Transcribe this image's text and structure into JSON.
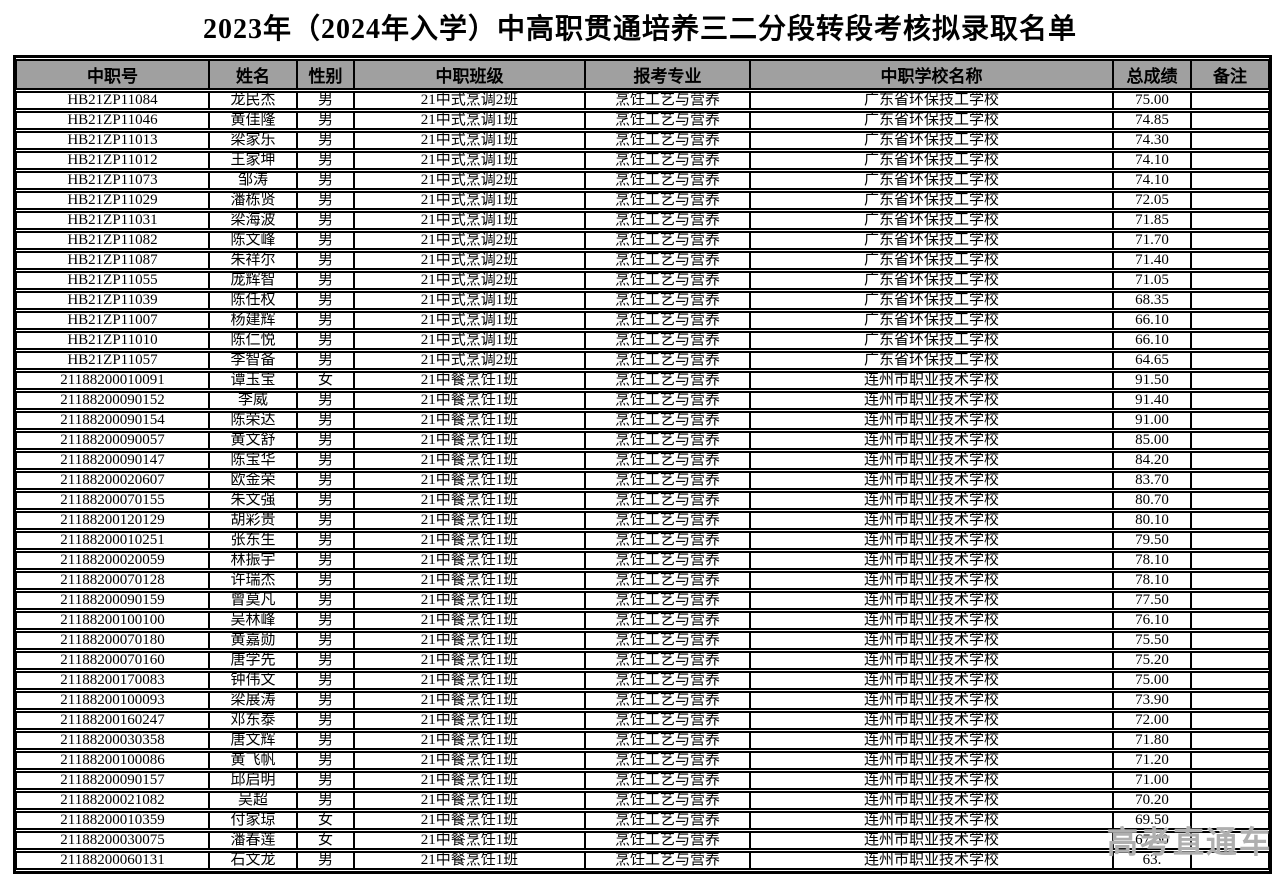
{
  "page": {
    "title": "2023年（2024年入学）中高职贯通培养三二分段转段考核拟录取名单"
  },
  "watermark": {
    "text": "高考直通车"
  },
  "table": {
    "headers": [
      "中职号",
      "姓名",
      "性别",
      "中职班级",
      "报考专业",
      "中职学校名称",
      "总成绩",
      "备注"
    ],
    "rows": [
      {
        "id": "HB21ZP11084",
        "name": "龙民杰",
        "gender": "男",
        "class": "21中式烹调2班",
        "major": "烹饪工艺与营养",
        "school": "广东省环保技工学校",
        "score": "75.00",
        "note": ""
      },
      {
        "id": "HB21ZP11046",
        "name": "黄佳隆",
        "gender": "男",
        "class": "21中式烹调1班",
        "major": "烹饪工艺与营养",
        "school": "广东省环保技工学校",
        "score": "74.85",
        "note": ""
      },
      {
        "id": "HB21ZP11013",
        "name": "梁家乐",
        "gender": "男",
        "class": "21中式烹调1班",
        "major": "烹饪工艺与营养",
        "school": "广东省环保技工学校",
        "score": "74.30",
        "note": ""
      },
      {
        "id": "HB21ZP11012",
        "name": "王家坤",
        "gender": "男",
        "class": "21中式烹调1班",
        "major": "烹饪工艺与营养",
        "school": "广东省环保技工学校",
        "score": "74.10",
        "note": ""
      },
      {
        "id": "HB21ZP11073",
        "name": "邹涛",
        "gender": "男",
        "class": "21中式烹调2班",
        "major": "烹饪工艺与营养",
        "school": "广东省环保技工学校",
        "score": "74.10",
        "note": ""
      },
      {
        "id": "HB21ZP11029",
        "name": "潘栋贤",
        "gender": "男",
        "class": "21中式烹调1班",
        "major": "烹饪工艺与营养",
        "school": "广东省环保技工学校",
        "score": "72.05",
        "note": ""
      },
      {
        "id": "HB21ZP11031",
        "name": "梁海波",
        "gender": "男",
        "class": "21中式烹调1班",
        "major": "烹饪工艺与营养",
        "school": "广东省环保技工学校",
        "score": "71.85",
        "note": ""
      },
      {
        "id": "HB21ZP11082",
        "name": "陈文峰",
        "gender": "男",
        "class": "21中式烹调2班",
        "major": "烹饪工艺与营养",
        "school": "广东省环保技工学校",
        "score": "71.70",
        "note": ""
      },
      {
        "id": "HB21ZP11087",
        "name": "朱祥尔",
        "gender": "男",
        "class": "21中式烹调2班",
        "major": "烹饪工艺与营养",
        "school": "广东省环保技工学校",
        "score": "71.40",
        "note": ""
      },
      {
        "id": "HB21ZP11055",
        "name": "庞辉智",
        "gender": "男",
        "class": "21中式烹调2班",
        "major": "烹饪工艺与营养",
        "school": "广东省环保技工学校",
        "score": "71.05",
        "note": ""
      },
      {
        "id": "HB21ZP11039",
        "name": "陈任权",
        "gender": "男",
        "class": "21中式烹调1班",
        "major": "烹饪工艺与营养",
        "school": "广东省环保技工学校",
        "score": "68.35",
        "note": ""
      },
      {
        "id": "HB21ZP11007",
        "name": "杨建辉",
        "gender": "男",
        "class": "21中式烹调1班",
        "major": "烹饪工艺与营养",
        "school": "广东省环保技工学校",
        "score": "66.10",
        "note": ""
      },
      {
        "id": "HB21ZP11010",
        "name": "陈仁悦",
        "gender": "男",
        "class": "21中式烹调1班",
        "major": "烹饪工艺与营养",
        "school": "广东省环保技工学校",
        "score": "66.10",
        "note": ""
      },
      {
        "id": "HB21ZP11057",
        "name": "李智备",
        "gender": "男",
        "class": "21中式烹调2班",
        "major": "烹饪工艺与营养",
        "school": "广东省环保技工学校",
        "score": "64.65",
        "note": ""
      },
      {
        "id": "21188200010091",
        "name": "谭玉宝",
        "gender": "女",
        "class": "21中餐烹饪1班",
        "major": "烹饪工艺与营养",
        "school": "连州市职业技术学校",
        "score": "91.50",
        "note": ""
      },
      {
        "id": "21188200090152",
        "name": "李威",
        "gender": "男",
        "class": "21中餐烹饪1班",
        "major": "烹饪工艺与营养",
        "school": "连州市职业技术学校",
        "score": "91.40",
        "note": ""
      },
      {
        "id": "21188200090154",
        "name": "陈荣达",
        "gender": "男",
        "class": "21中餐烹饪1班",
        "major": "烹饪工艺与营养",
        "school": "连州市职业技术学校",
        "score": "91.00",
        "note": ""
      },
      {
        "id": "21188200090057",
        "name": "黄文舒",
        "gender": "男",
        "class": "21中餐烹饪1班",
        "major": "烹饪工艺与营养",
        "school": "连州市职业技术学校",
        "score": "85.00",
        "note": ""
      },
      {
        "id": "21188200090147",
        "name": "陈宝华",
        "gender": "男",
        "class": "21中餐烹饪1班",
        "major": "烹饪工艺与营养",
        "school": "连州市职业技术学校",
        "score": "84.20",
        "note": ""
      },
      {
        "id": "21188200020607",
        "name": "欧金荣",
        "gender": "男",
        "class": "21中餐烹饪1班",
        "major": "烹饪工艺与营养",
        "school": "连州市职业技术学校",
        "score": "83.70",
        "note": ""
      },
      {
        "id": "21188200070155",
        "name": "朱文强",
        "gender": "男",
        "class": "21中餐烹饪1班",
        "major": "烹饪工艺与营养",
        "school": "连州市职业技术学校",
        "score": "80.70",
        "note": ""
      },
      {
        "id": "21188200120129",
        "name": "胡彩贵",
        "gender": "男",
        "class": "21中餐烹饪1班",
        "major": "烹饪工艺与营养",
        "school": "连州市职业技术学校",
        "score": "80.10",
        "note": ""
      },
      {
        "id": "21188200010251",
        "name": "张东生",
        "gender": "男",
        "class": "21中餐烹饪1班",
        "major": "烹饪工艺与营养",
        "school": "连州市职业技术学校",
        "score": "79.50",
        "note": ""
      },
      {
        "id": "21188200020059",
        "name": "林振宇",
        "gender": "男",
        "class": "21中餐烹饪1班",
        "major": "烹饪工艺与营养",
        "school": "连州市职业技术学校",
        "score": "78.10",
        "note": ""
      },
      {
        "id": "21188200070128",
        "name": "许瑞杰",
        "gender": "男",
        "class": "21中餐烹饪1班",
        "major": "烹饪工艺与营养",
        "school": "连州市职业技术学校",
        "score": "78.10",
        "note": ""
      },
      {
        "id": "21188200090159",
        "name": "曾莫凡",
        "gender": "男",
        "class": "21中餐烹饪1班",
        "major": "烹饪工艺与营养",
        "school": "连州市职业技术学校",
        "score": "77.50",
        "note": ""
      },
      {
        "id": "21188200100100",
        "name": "吴林峰",
        "gender": "男",
        "class": "21中餐烹饪1班",
        "major": "烹饪工艺与营养",
        "school": "连州市职业技术学校",
        "score": "76.10",
        "note": ""
      },
      {
        "id": "21188200070180",
        "name": "黄嘉勋",
        "gender": "男",
        "class": "21中餐烹饪1班",
        "major": "烹饪工艺与营养",
        "school": "连州市职业技术学校",
        "score": "75.50",
        "note": ""
      },
      {
        "id": "21188200070160",
        "name": "唐学先",
        "gender": "男",
        "class": "21中餐烹饪1班",
        "major": "烹饪工艺与营养",
        "school": "连州市职业技术学校",
        "score": "75.20",
        "note": ""
      },
      {
        "id": "21188200170083",
        "name": "钟伟文",
        "gender": "男",
        "class": "21中餐烹饪1班",
        "major": "烹饪工艺与营养",
        "school": "连州市职业技术学校",
        "score": "75.00",
        "note": ""
      },
      {
        "id": "21188200100093",
        "name": "梁展涛",
        "gender": "男",
        "class": "21中餐烹饪1班",
        "major": "烹饪工艺与营养",
        "school": "连州市职业技术学校",
        "score": "73.90",
        "note": ""
      },
      {
        "id": "21188200160247",
        "name": "邓东泰",
        "gender": "男",
        "class": "21中餐烹饪1班",
        "major": "烹饪工艺与营养",
        "school": "连州市职业技术学校",
        "score": "72.00",
        "note": ""
      },
      {
        "id": "21188200030358",
        "name": "唐文辉",
        "gender": "男",
        "class": "21中餐烹饪1班",
        "major": "烹饪工艺与营养",
        "school": "连州市职业技术学校",
        "score": "71.80",
        "note": ""
      },
      {
        "id": "21188200100086",
        "name": "黄飞帆",
        "gender": "男",
        "class": "21中餐烹饪1班",
        "major": "烹饪工艺与营养",
        "school": "连州市职业技术学校",
        "score": "71.20",
        "note": ""
      },
      {
        "id": "21188200090157",
        "name": "邱启明",
        "gender": "男",
        "class": "21中餐烹饪1班",
        "major": "烹饪工艺与营养",
        "school": "连州市职业技术学校",
        "score": "71.00",
        "note": ""
      },
      {
        "id": "21188200021082",
        "name": "吴超",
        "gender": "男",
        "class": "21中餐烹饪1班",
        "major": "烹饪工艺与营养",
        "school": "连州市职业技术学校",
        "score": "70.20",
        "note": ""
      },
      {
        "id": "21188200010359",
        "name": "付家琼",
        "gender": "女",
        "class": "21中餐烹饪1班",
        "major": "烹饪工艺与营养",
        "school": "连州市职业技术学校",
        "score": "69.50",
        "note": ""
      },
      {
        "id": "21188200030075",
        "name": "潘春莲",
        "gender": "女",
        "class": "21中餐烹饪1班",
        "major": "烹饪工艺与营养",
        "school": "连州市职业技术学校",
        "score": "67.60",
        "note": ""
      },
      {
        "id": "21188200060131",
        "name": "石文龙",
        "gender": "男",
        "class": "21中餐烹饪1班",
        "major": "烹饪工艺与营养",
        "school": "连州市职业技术学校",
        "score": "63.",
        "note": ""
      }
    ]
  }
}
